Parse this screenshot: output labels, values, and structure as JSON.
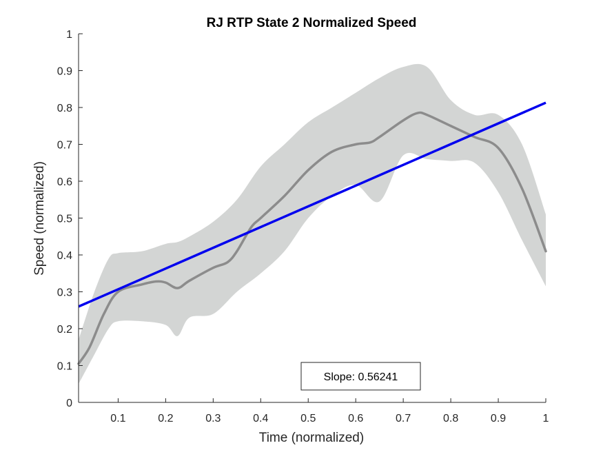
{
  "chart_data": {
    "type": "line",
    "title": "RJ  RTP State 2 Normalized Speed",
    "xlabel": "Time (normalized)",
    "ylabel": "Speed (normalized)",
    "xlim": [
      0.0167,
      1.0
    ],
    "ylim": [
      0,
      1
    ],
    "xticks": [
      0.1,
      0.2,
      0.3,
      0.4,
      0.5,
      0.6,
      0.7,
      0.8,
      0.9,
      1
    ],
    "xtick_labels": [
      "0.1",
      "0.2",
      "0.3",
      "0.4",
      "0.5",
      "0.6",
      "0.7",
      "0.8",
      "0.9",
      "1"
    ],
    "yticks": [
      0,
      0.1,
      0.2,
      0.3,
      0.4,
      0.5,
      0.6,
      0.7,
      0.8,
      0.9,
      1
    ],
    "ytick_labels": [
      "0",
      "0.1",
      "0.2",
      "0.3",
      "0.4",
      "0.5",
      "0.6",
      "0.7",
      "0.8",
      "0.9",
      "1"
    ],
    "grid": false,
    "colors": {
      "band": "#d3d5d4",
      "mean": "#8c8c8c",
      "fit": "#0000ee",
      "axis": "#262626"
    },
    "band": {
      "x": [
        0.0167,
        0.05,
        0.08,
        0.1,
        0.15,
        0.2,
        0.225,
        0.25,
        0.3,
        0.35,
        0.4,
        0.45,
        0.5,
        0.55,
        0.6,
        0.65,
        0.7,
        0.75,
        0.8,
        0.85,
        0.9,
        0.95,
        1.0
      ],
      "upper": [
        0.17,
        0.3,
        0.39,
        0.405,
        0.41,
        0.43,
        0.435,
        0.45,
        0.49,
        0.55,
        0.64,
        0.7,
        0.76,
        0.8,
        0.84,
        0.88,
        0.91,
        0.91,
        0.82,
        0.78,
        0.78,
        0.7,
        0.51
      ],
      "lower": [
        0.05,
        0.13,
        0.2,
        0.22,
        0.22,
        0.21,
        0.18,
        0.23,
        0.24,
        0.3,
        0.35,
        0.41,
        0.5,
        0.56,
        0.59,
        0.545,
        0.67,
        0.66,
        0.655,
        0.65,
        0.57,
        0.44,
        0.315
      ]
    },
    "series": [
      {
        "x": [
          0.0167,
          0.04,
          0.07,
          0.1,
          0.15,
          0.18,
          0.2,
          0.225,
          0.25,
          0.3,
          0.33,
          0.35,
          0.38,
          0.4,
          0.45,
          0.5,
          0.55,
          0.6,
          0.63,
          0.65,
          0.7,
          0.73,
          0.75,
          0.8,
          0.85,
          0.9,
          0.95,
          1.0
        ],
        "values": [
          0.105,
          0.15,
          0.24,
          0.3,
          0.32,
          0.328,
          0.325,
          0.31,
          0.33,
          0.365,
          0.38,
          0.41,
          0.475,
          0.5,
          0.56,
          0.63,
          0.68,
          0.7,
          0.705,
          0.72,
          0.765,
          0.785,
          0.78,
          0.75,
          0.72,
          0.69,
          0.58,
          0.41
        ]
      }
    ],
    "fit_line": {
      "x": [
        0.0167,
        1.0
      ],
      "values": [
        0.26,
        0.813
      ]
    },
    "annotation": {
      "text": "Slope: 0.56241"
    }
  }
}
